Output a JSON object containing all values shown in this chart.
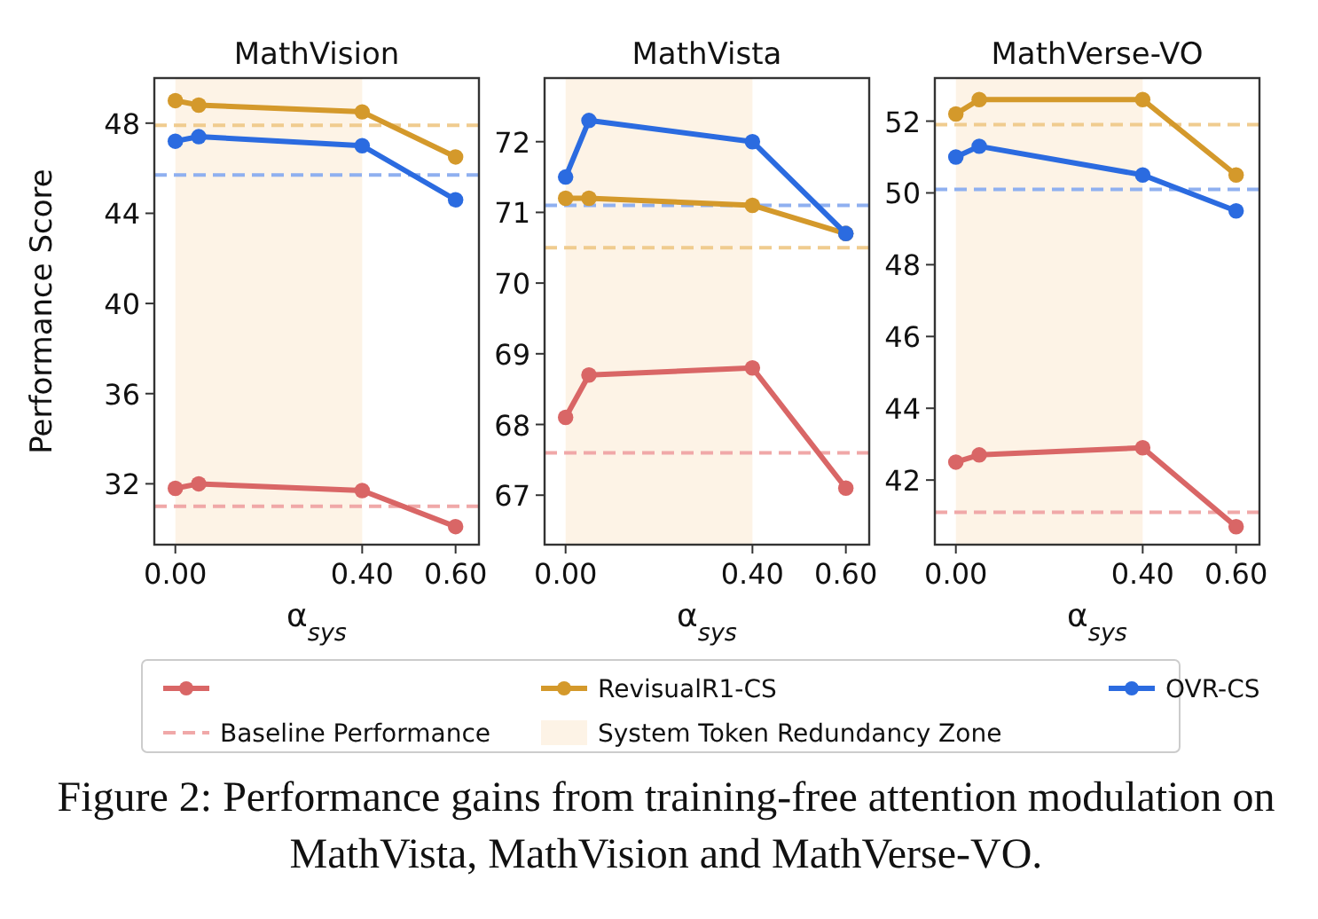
{
  "chart_data": [
    {
      "type": "line",
      "title": "MathVision",
      "ylabel": "Performance Score",
      "xlabel": "α$_{sys}$",
      "x": [
        0,
        0.05,
        0.4,
        0.6
      ],
      "xlim": [
        -0.045,
        0.65
      ],
      "xticks": [
        {
          "value": 0,
          "label": "0.00"
        },
        {
          "value": 0.4,
          "label": "0.40"
        },
        {
          "value": 0.6,
          "label": "0.60"
        }
      ],
      "ylim": [
        29.3,
        50
      ],
      "yticks": [
        32,
        36,
        40,
        44,
        48
      ],
      "marker": "circle",
      "legend": "bottom",
      "series": [
        {
          "color": "#d96666",
          "values": [
            31.8,
            32.0,
            31.7,
            30.1
          ]
        },
        {
          "name": "RevisualR1-CS",
          "color": "#d4992b",
          "values": [
            49.0,
            48.8,
            48.5,
            46.5
          ]
        },
        {
          "name": "OVR-CS",
          "color": "#2b6be0",
          "values": [
            47.2,
            47.4,
            47.0,
            44.6
          ]
        }
      ],
      "ref_lines": [
        {
          "axis": "y",
          "value": 31.0,
          "label": "Baseline Performance",
          "color": "#f0a8a8",
          "line_style": "dashed"
        },
        {
          "axis": "y",
          "value": 47.9,
          "color": "#f0cc8f",
          "line_style": "dashed"
        },
        {
          "axis": "y",
          "value": 45.7,
          "color": "#8fb0f0",
          "line_style": "dashed"
        }
      ],
      "bands": [
        {
          "axis": "x",
          "from": 0,
          "to": 0.4,
          "label": "System Token Redundancy Zone",
          "color": "#fdf3e6"
        }
      ],
      "annotations": [
        "Figure 2: Performance gains from training-free attention modulation on MathVista, MathVision and MathVerse-VO."
      ]
    },
    {
      "type": "line",
      "title": "MathVista",
      "xlabel": "α$_{sys}$",
      "x": [
        0,
        0.05,
        0.4,
        0.6
      ],
      "xlim": [
        -0.045,
        0.65
      ],
      "xticks": [
        {
          "value": 0,
          "label": "0.00"
        },
        {
          "value": 0.4,
          "label": "0.40"
        },
        {
          "value": 0.6,
          "label": "0.60"
        }
      ],
      "ylim": [
        66.3,
        72.9
      ],
      "yticks": [
        67,
        68,
        69,
        70,
        71,
        72
      ],
      "marker": "circle",
      "series": [
        {
          "color": "#d96666",
          "values": [
            68.1,
            68.7,
            68.8,
            67.1
          ]
        },
        {
          "color": "#d4992b",
          "values": [
            71.2,
            71.2,
            71.1,
            70.7
          ]
        },
        {
          "color": "#2b6be0",
          "values": [
            71.5,
            72.3,
            72.0,
            70.7
          ]
        }
      ],
      "ref_lines": [
        {
          "axis": "y",
          "value": 67.6,
          "color": "#f0a8a8",
          "line_style": "dashed"
        },
        {
          "axis": "y",
          "value": 70.5,
          "color": "#f0cc8f",
          "line_style": "dashed"
        },
        {
          "axis": "y",
          "value": 71.1,
          "color": "#8fb0f0",
          "line_style": "dashed"
        }
      ],
      "bands": [
        {
          "axis": "x",
          "from": 0,
          "to": 0.4,
          "color": "#fdf3e6"
        }
      ]
    },
    {
      "type": "line",
      "title": "MathVerse-VO",
      "xlabel": "α$_{sys}$",
      "x": [
        0,
        0.05,
        0.4,
        0.6
      ],
      "xlim": [
        -0.045,
        0.65
      ],
      "xticks": [
        {
          "value": 0,
          "label": "0.00"
        },
        {
          "value": 0.4,
          "label": "0.40"
        },
        {
          "value": 0.6,
          "label": "0.60"
        }
      ],
      "ylim": [
        40.2,
        53.2
      ],
      "yticks": [
        42,
        44,
        46,
        48,
        50,
        52
      ],
      "marker": "circle",
      "series": [
        {
          "color": "#d96666",
          "values": [
            42.5,
            42.7,
            42.9,
            40.7
          ]
        },
        {
          "color": "#d4992b",
          "values": [
            52.2,
            52.6,
            52.6,
            50.5
          ]
        },
        {
          "color": "#2b6be0",
          "values": [
            51.0,
            51.3,
            50.5,
            49.5
          ]
        }
      ],
      "ref_lines": [
        {
          "axis": "y",
          "value": 41.1,
          "color": "#f0a8a8",
          "line_style": "dashed"
        },
        {
          "axis": "y",
          "value": 51.9,
          "color": "#f0cc8f",
          "line_style": "dashed"
        },
        {
          "axis": "y",
          "value": 50.1,
          "color": "#8fb0f0",
          "line_style": "dashed"
        }
      ],
      "bands": [
        {
          "axis": "x",
          "from": 0,
          "to": 0.4,
          "color": "#fdf3e6"
        }
      ]
    }
  ]
}
